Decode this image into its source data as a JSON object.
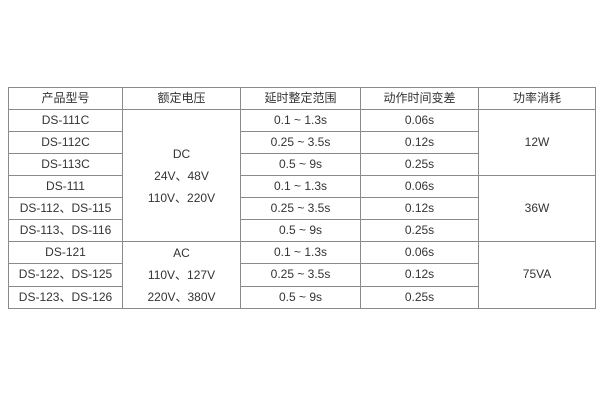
{
  "colors": {
    "background": "#ffffff",
    "border": "#8a8a8a",
    "text": "#333333"
  },
  "table": {
    "headers": [
      "产品型号",
      "额定电压",
      "延时整定范围",
      "动作时间变差",
      "功率消耗"
    ],
    "voltage_groups": [
      {
        "lines": [
          "DC",
          "24V、48V",
          "110V、220V"
        ]
      },
      {
        "lines": [
          "AC",
          "110V、127V",
          "220V、380V"
        ]
      }
    ],
    "power_groups": [
      "12W",
      "36W",
      "75VA"
    ],
    "rows": [
      {
        "model": "DS-111C",
        "delay": "0.1 ~ 1.3s",
        "variation": "0.06s"
      },
      {
        "model": "DS-112C",
        "delay": "0.25 ~ 3.5s",
        "variation": "0.12s"
      },
      {
        "model": "DS-113C",
        "delay": "0.5 ~ 9s",
        "variation": "0.25s"
      },
      {
        "model": "DS-111",
        "delay": "0.1 ~ 1.3s",
        "variation": "0.06s"
      },
      {
        "model": "DS-112、DS-115",
        "delay": "0.25 ~ 3.5s",
        "variation": "0.12s"
      },
      {
        "model": "DS-113、DS-116",
        "delay": "0.5 ~ 9s",
        "variation": "0.25s"
      },
      {
        "model": "DS-121",
        "delay": "0.1 ~ 1.3s",
        "variation": "0.06s"
      },
      {
        "model": "DS-122、DS-125",
        "delay": "0.25 ~ 3.5s",
        "variation": "0.12s"
      },
      {
        "model": "DS-123、DS-126",
        "delay": "0.5 ~ 9s",
        "variation": "0.25s"
      }
    ]
  }
}
